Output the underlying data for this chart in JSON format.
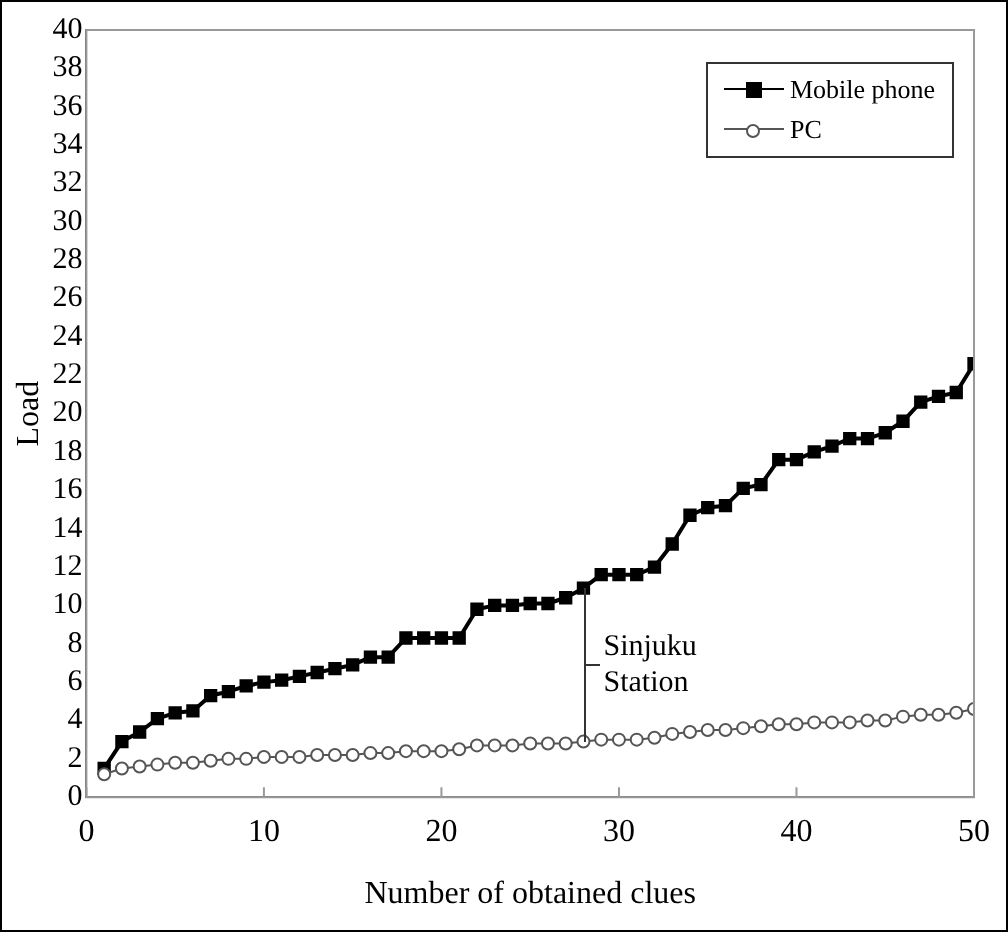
{
  "chart_data": {
    "type": "line",
    "xlabel": "Number of obtained clues",
    "ylabel": "Load",
    "x": [
      1,
      2,
      3,
      4,
      5,
      6,
      7,
      8,
      9,
      10,
      11,
      12,
      13,
      14,
      15,
      16,
      17,
      18,
      19,
      20,
      21,
      22,
      23,
      24,
      25,
      26,
      27,
      28,
      29,
      30,
      31,
      32,
      33,
      34,
      35,
      36,
      37,
      38,
      39,
      40,
      41,
      42,
      43,
      44,
      45,
      46,
      47,
      48,
      49,
      50
    ],
    "series": [
      {
        "name": "Mobile phone",
        "color": "#000000",
        "marker": "square",
        "values": [
          1.5,
          2.9,
          3.4,
          4.1,
          4.4,
          4.5,
          5.3,
          5.5,
          5.8,
          6.0,
          6.1,
          6.3,
          6.5,
          6.7,
          6.9,
          7.3,
          7.3,
          8.3,
          8.3,
          8.3,
          8.3,
          9.8,
          10.0,
          10.0,
          10.1,
          10.1,
          10.4,
          10.9,
          11.6,
          11.6,
          11.6,
          12.0,
          13.2,
          14.7,
          15.1,
          15.2,
          16.1,
          16.3,
          17.6,
          17.6,
          18.0,
          18.3,
          18.7,
          18.7,
          19.0,
          19.6,
          20.6,
          20.9,
          21.1,
          22.6
        ]
      },
      {
        "name": "PC",
        "color": "#555555",
        "marker": "circle",
        "values": [
          1.2,
          1.5,
          1.6,
          1.7,
          1.8,
          1.8,
          1.9,
          2.0,
          2.0,
          2.1,
          2.1,
          2.1,
          2.2,
          2.2,
          2.2,
          2.3,
          2.3,
          2.4,
          2.4,
          2.4,
          2.5,
          2.7,
          2.7,
          2.7,
          2.8,
          2.8,
          2.8,
          2.9,
          3.0,
          3.0,
          3.0,
          3.1,
          3.3,
          3.4,
          3.5,
          3.5,
          3.6,
          3.7,
          3.8,
          3.8,
          3.9,
          3.9,
          3.9,
          4.0,
          4.0,
          4.2,
          4.3,
          4.3,
          4.4,
          4.6
        ]
      }
    ],
    "xlim": [
      0,
      50
    ],
    "xticks": [
      0,
      10,
      20,
      30,
      40,
      50
    ],
    "ylim": [
      0,
      40
    ],
    "yticks": [
      0,
      2,
      4,
      6,
      8,
      10,
      12,
      14,
      16,
      18,
      20,
      22,
      24,
      26,
      28,
      30,
      32,
      34,
      36,
      38,
      40
    ],
    "grid": false,
    "legend": "top right",
    "line_style": "solid",
    "annotations": [
      {
        "text": "Sinjuku Station",
        "x": 28,
        "y": 10.9
      }
    ]
  }
}
